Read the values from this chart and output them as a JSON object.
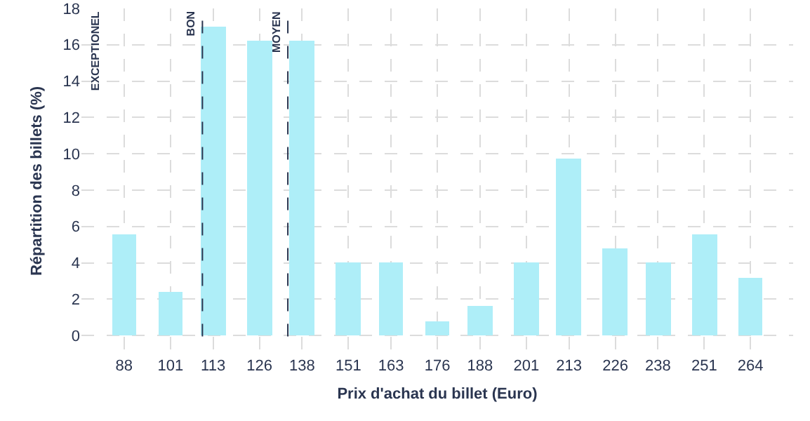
{
  "chart_data": {
    "type": "bar",
    "xlabel": "Prix d'achat du billet (Euro)",
    "ylabel": "Répartition des billets (%)",
    "x": [
      88,
      101,
      113,
      126,
      138,
      151,
      163,
      176,
      188,
      201,
      213,
      226,
      238,
      251,
      264
    ],
    "values": [
      5.6,
      2.4,
      17,
      16.2,
      16.2,
      4,
      4,
      0.8,
      1.6,
      4,
      9.7,
      4.8,
      4,
      5.6,
      3.2
    ],
    "color": "#aeeef8",
    "xlim": [
      76,
      276
    ],
    "xticks": [
      88,
      101,
      113,
      126,
      138,
      151,
      163,
      176,
      188,
      201,
      213,
      226,
      238,
      251,
      264
    ],
    "ylim": [
      -1,
      18
    ],
    "yticks": [
      0,
      2,
      4,
      6,
      8,
      10,
      12,
      14,
      16,
      18
    ],
    "grid": true,
    "ref_lines": [
      {
        "axis": "x",
        "value": 110,
        "label": "BON",
        "color": "#2a3550",
        "line_style": "dashed"
      },
      {
        "axis": "x",
        "value": 134,
        "label": "MOYEN",
        "color": "#2a3550",
        "line_style": "dashed"
      }
    ],
    "annotations": [
      "EXCEPTIONEL"
    ]
  }
}
